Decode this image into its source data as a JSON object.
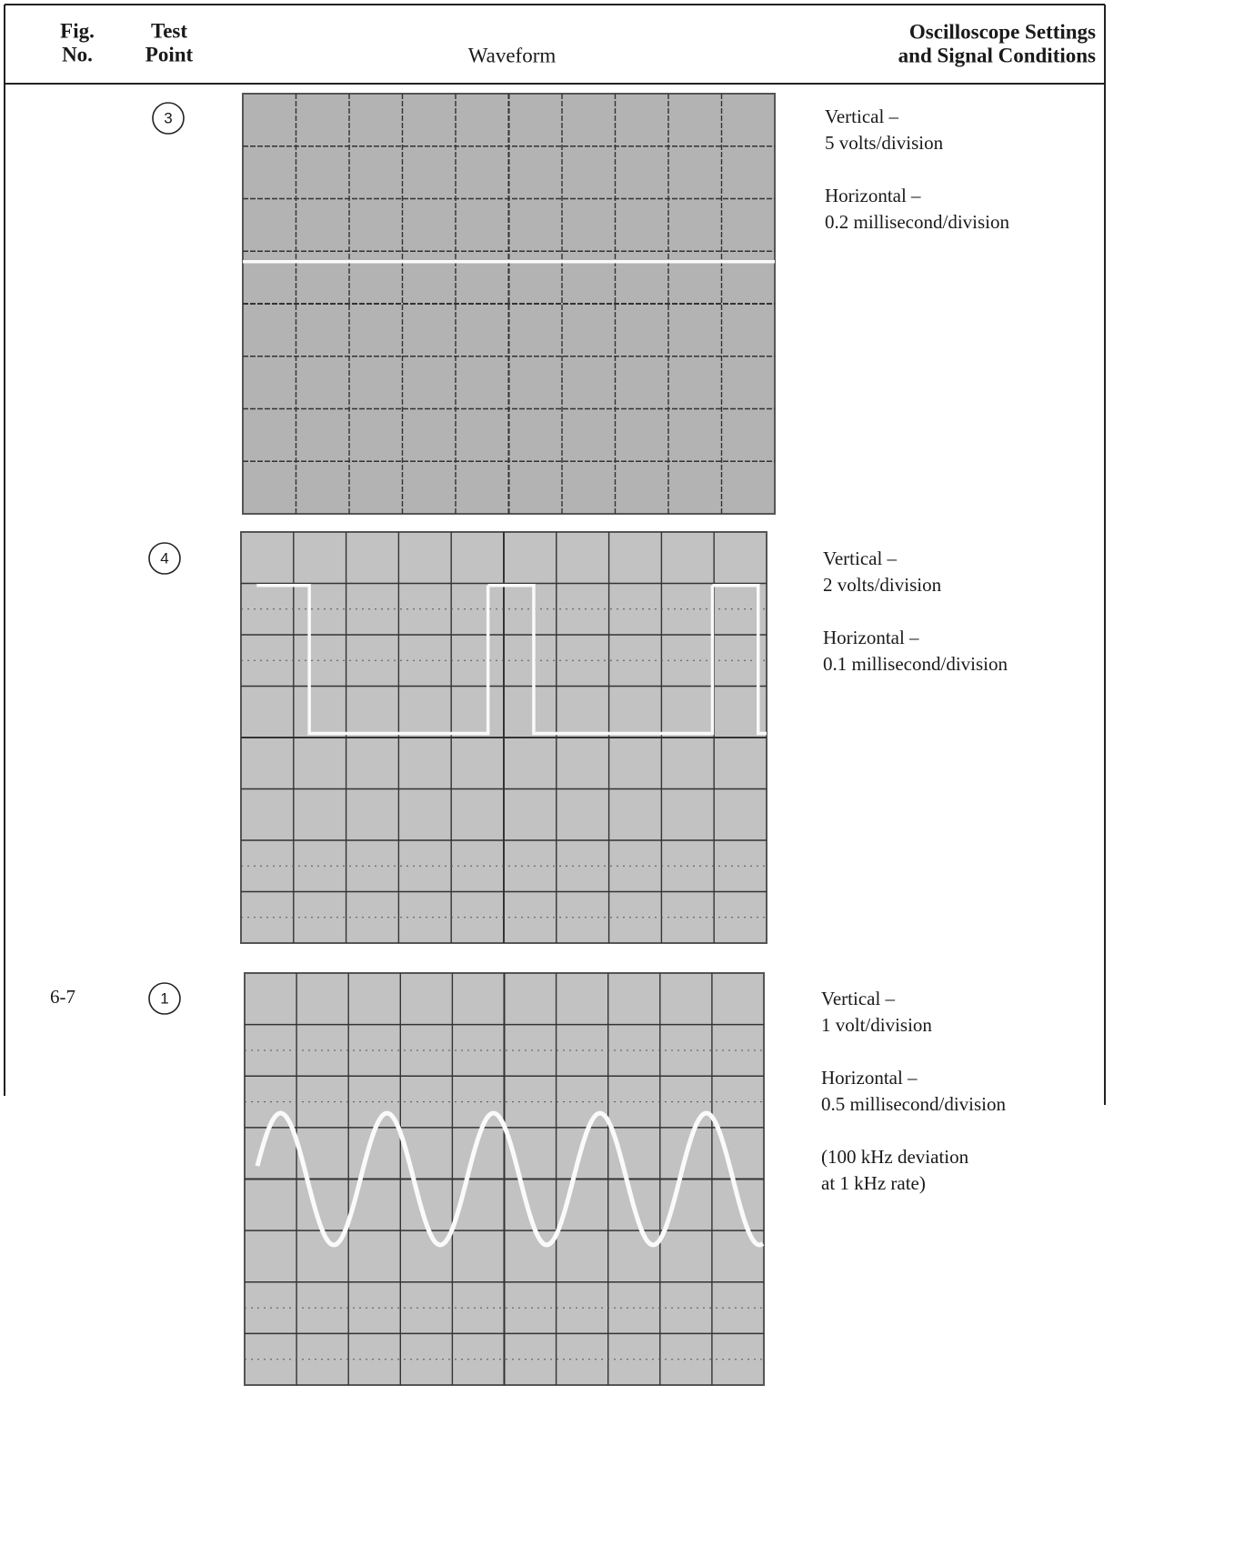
{
  "header": {
    "columns": [
      [
        "Fig.",
        "No."
      ],
      [
        "Test",
        "Point"
      ],
      [
        "Waveform"
      ],
      [
        "Oscilloscope Settings",
        "and Signal Conditions"
      ]
    ]
  },
  "rows": [
    {
      "test_point": "3",
      "settings": [
        [
          "Vertical –",
          "5 volts/division"
        ],
        [
          "Horizontal –",
          "0.2 millisecond/division"
        ]
      ]
    },
    {
      "test_point": "4",
      "settings": [
        [
          "Vertical –",
          "2 volts/division"
        ],
        [
          "Horizontal –",
          "0.1 millisecond/division"
        ]
      ]
    },
    {
      "fig": "6-7",
      "test_point": "1",
      "settings": [
        [
          "Vertical –",
          "1 volt/division"
        ],
        [
          "Horizontal –",
          "0.5 millisecond/division"
        ],
        [
          "(100 kHz deviation",
          "at 1 kHz rate)"
        ]
      ]
    }
  ]
}
